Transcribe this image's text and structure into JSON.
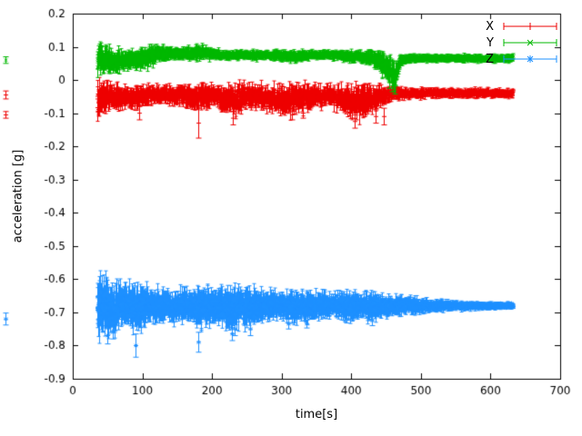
{
  "chart_data": {
    "type": "scatter",
    "style": "points-with-errorbars",
    "title": "",
    "xlabel": "time[s]",
    "ylabel": "acceleration [g]",
    "xlim": [
      0,
      700
    ],
    "ylim": [
      -0.9,
      0.2
    ],
    "grid": false,
    "xticks": {
      "values": [
        0,
        100,
        200,
        300,
        400,
        500,
        600,
        700
      ],
      "labels": [
        "0",
        "100",
        "200",
        "300",
        "400",
        "500",
        "600",
        "700"
      ]
    },
    "yticks": {
      "values": [
        0.2,
        0.1,
        0,
        -0.1,
        -0.2,
        -0.3,
        -0.4,
        -0.5,
        -0.6,
        -0.7,
        -0.8,
        -0.9
      ],
      "labels": [
        "0.2",
        "0.1",
        "0",
        "-0.1",
        "-0.2",
        "-0.3",
        "-0.4",
        "-0.5",
        "-0.6",
        "-0.7",
        "-0.8",
        "-0.9"
      ]
    },
    "legend": {
      "position": "top-right",
      "entries": [
        {
          "label": "X",
          "color": "#ee0000",
          "marker": "plus"
        },
        {
          "label": "Y",
          "color": "#00b800",
          "marker": "cross"
        },
        {
          "label": "Z",
          "color": "#1e90ff",
          "marker": "asterisk"
        }
      ]
    },
    "series": [
      {
        "name": "X",
        "color": "#ee0000",
        "marker": "plus",
        "seed": 101,
        "t_start": 35,
        "t_end": 632,
        "dt": 0.4,
        "envelope_t": [
          35,
          45,
          60,
          80,
          100,
          120,
          140,
          160,
          180,
          200,
          220,
          235,
          250,
          270,
          290,
          310,
          330,
          350,
          370,
          390,
          410,
          425,
          440,
          455,
          470,
          500,
          550,
          600,
          632
        ],
        "mean": [
          -0.055,
          -0.05,
          -0.05,
          -0.05,
          -0.05,
          -0.045,
          -0.045,
          -0.05,
          -0.05,
          -0.05,
          -0.055,
          -0.06,
          -0.05,
          -0.05,
          -0.055,
          -0.06,
          -0.055,
          -0.05,
          -0.045,
          -0.06,
          -0.065,
          -0.06,
          -0.05,
          -0.045,
          -0.04,
          -0.04,
          -0.04,
          -0.04,
          -0.04
        ],
        "spread": [
          0.055,
          0.04,
          0.035,
          0.03,
          0.03,
          0.025,
          0.025,
          0.03,
          0.035,
          0.03,
          0.035,
          0.04,
          0.03,
          0.03,
          0.035,
          0.04,
          0.035,
          0.03,
          0.025,
          0.04,
          0.045,
          0.04,
          0.03,
          0.02,
          0.015,
          0.013,
          0.012,
          0.012,
          0.012
        ],
        "outliers": [
          [
            180,
            -0.13,
            0.045
          ],
          [
            95,
            -0.1,
            0.02
          ],
          [
            230,
            -0.115,
            0.02
          ],
          [
            315,
            -0.105,
            0.015
          ],
          [
            330,
            -0.1,
            0.015
          ],
          [
            405,
            -0.125,
            0.02
          ],
          [
            435,
            -0.11,
            0.02
          ],
          [
            447,
            -0.11,
            0.025
          ]
        ]
      },
      {
        "name": "Y",
        "color": "#00b800",
        "marker": "cross",
        "seed": 202,
        "t_start": 35,
        "t_end": 632,
        "dt": 0.35,
        "envelope_t": [
          35,
          45,
          60,
          80,
          100,
          115,
          130,
          150,
          170,
          185,
          200,
          220,
          240,
          260,
          280,
          300,
          320,
          340,
          360,
          380,
          400,
          415,
          430,
          445,
          455,
          462,
          470,
          485,
          500,
          550,
          600,
          632
        ],
        "mean": [
          0.065,
          0.06,
          0.055,
          0.06,
          0.065,
          0.075,
          0.08,
          0.08,
          0.08,
          0.085,
          0.08,
          0.075,
          0.075,
          0.075,
          0.075,
          0.075,
          0.07,
          0.075,
          0.075,
          0.075,
          0.07,
          0.07,
          0.065,
          0.05,
          0.03,
          0.01,
          0.06,
          0.065,
          0.065,
          0.065,
          0.065,
          0.065
        ],
        "spread": [
          0.045,
          0.035,
          0.03,
          0.025,
          0.03,
          0.025,
          0.02,
          0.015,
          0.02,
          0.02,
          0.015,
          0.012,
          0.012,
          0.012,
          0.012,
          0.015,
          0.015,
          0.012,
          0.012,
          0.012,
          0.015,
          0.015,
          0.02,
          0.03,
          0.035,
          0.035,
          0.015,
          0.012,
          0.01,
          0.01,
          0.01,
          0.01
        ],
        "outliers": [
          [
            455,
            -0.005,
            0.02
          ],
          [
            458,
            -0.02,
            0.015
          ],
          [
            462,
            -0.03,
            0.012
          ]
        ]
      },
      {
        "name": "Z",
        "color": "#1e90ff",
        "marker": "asterisk",
        "seed": 303,
        "t_start": 35,
        "t_end": 632,
        "dt": 0.3,
        "envelope_t": [
          35,
          45,
          55,
          70,
          85,
          95,
          110,
          130,
          150,
          170,
          180,
          195,
          215,
          230,
          245,
          260,
          275,
          295,
          315,
          335,
          355,
          375,
          395,
          415,
          430,
          445,
          460,
          480,
          500,
          530,
          560,
          600,
          632
        ],
        "mean": [
          -0.68,
          -0.685,
          -0.69,
          -0.685,
          -0.68,
          -0.685,
          -0.68,
          -0.68,
          -0.68,
          -0.68,
          -0.685,
          -0.68,
          -0.685,
          -0.69,
          -0.685,
          -0.685,
          -0.68,
          -0.68,
          -0.685,
          -0.68,
          -0.68,
          -0.68,
          -0.685,
          -0.68,
          -0.685,
          -0.68,
          -0.68,
          -0.68,
          -0.68,
          -0.68,
          -0.68,
          -0.68,
          -0.68
        ],
        "spread": [
          0.07,
          0.075,
          0.065,
          0.05,
          0.055,
          0.06,
          0.042,
          0.038,
          0.04,
          0.04,
          0.06,
          0.045,
          0.05,
          0.055,
          0.045,
          0.048,
          0.038,
          0.033,
          0.042,
          0.038,
          0.033,
          0.033,
          0.038,
          0.033,
          0.04,
          0.028,
          0.024,
          0.021,
          0.018,
          0.014,
          0.011,
          0.009,
          0.008
        ],
        "outliers": [
          [
            50,
            -0.77,
            0.025
          ],
          [
            57,
            -0.76,
            0.02
          ],
          [
            90,
            -0.8,
            0.035
          ],
          [
            180,
            -0.79,
            0.03
          ],
          [
            228,
            -0.765,
            0.02
          ],
          [
            232,
            -0.75,
            0.02
          ],
          [
            255,
            -0.75,
            0.02
          ],
          [
            310,
            -0.735,
            0.015
          ],
          [
            335,
            -0.735,
            0.012
          ],
          [
            393,
            -0.72,
            0.012
          ],
          [
            430,
            -0.725,
            0.015
          ]
        ]
      }
    ],
    "edge_points": [
      {
        "series": "Y",
        "y": 0.06,
        "err": 0.01
      },
      {
        "series": "X",
        "y": -0.045,
        "err": 0.012
      },
      {
        "series": "X",
        "y": -0.105,
        "err": 0.01
      },
      {
        "series": "Z",
        "y": -0.72,
        "err": 0.018
      }
    ]
  }
}
